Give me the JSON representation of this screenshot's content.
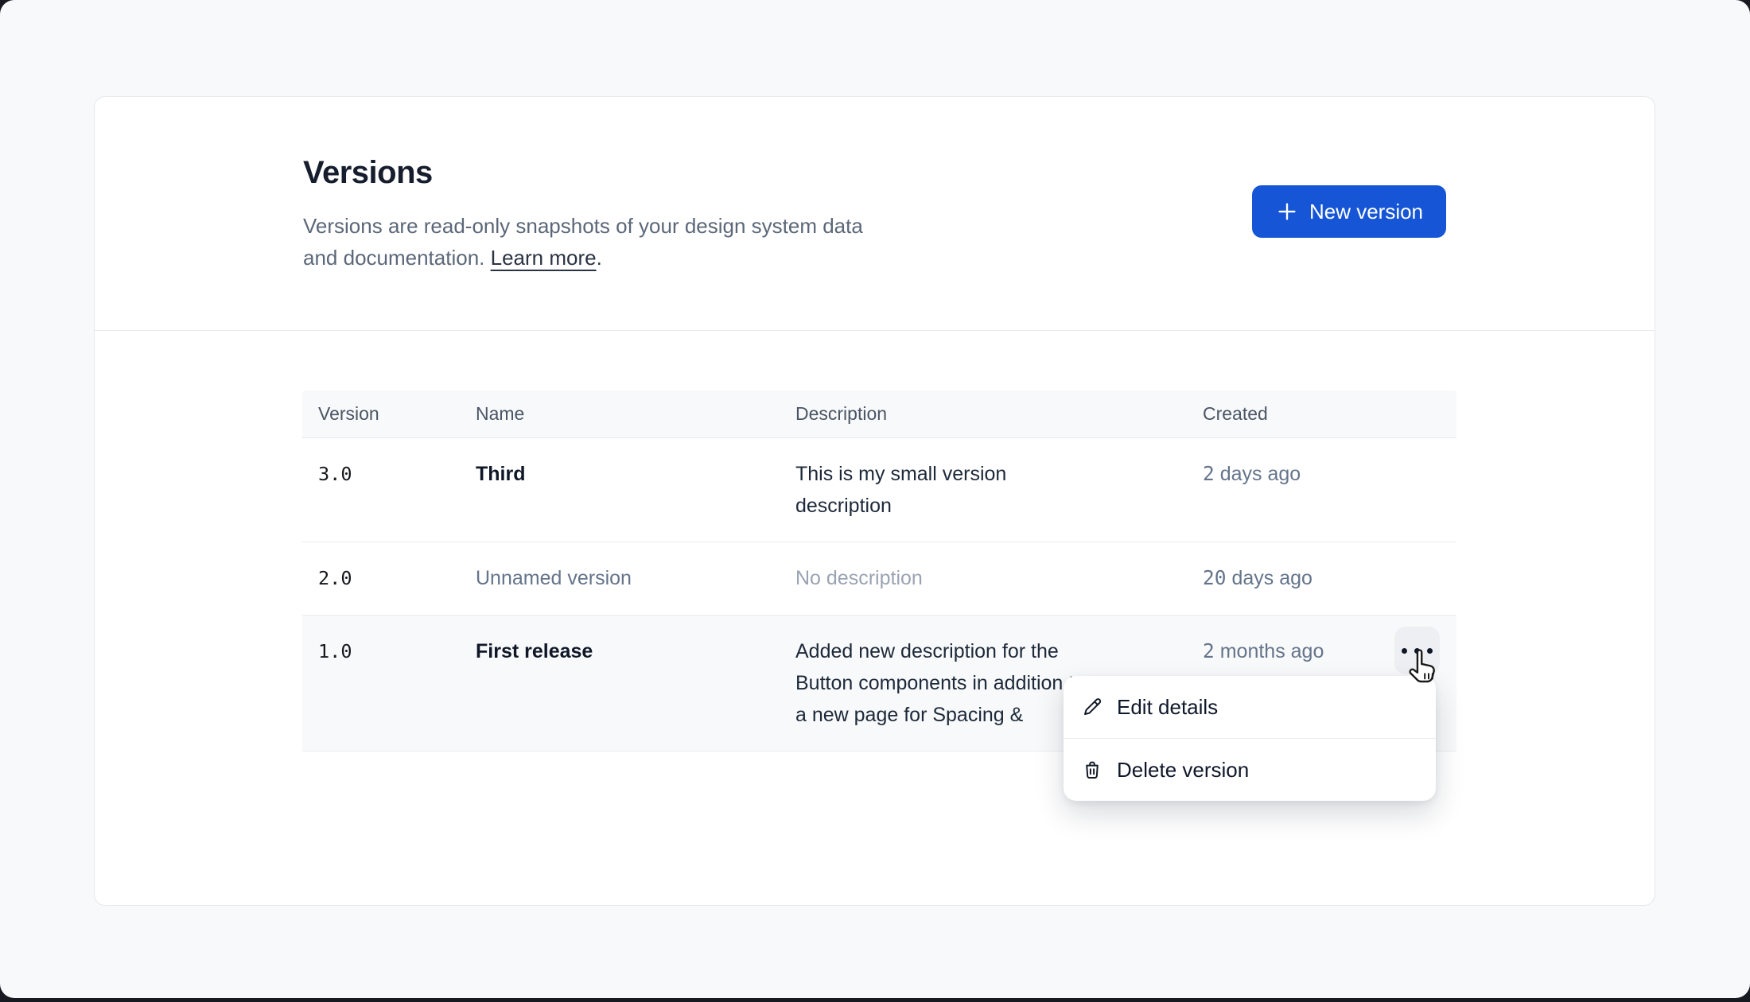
{
  "header": {
    "title": "Versions",
    "description_line1": "Versions are read-only snapshots of your design system data",
    "description_line2": "and documentation.",
    "learn_more_label": "Learn more",
    "after_link": ".",
    "new_version_label": "New version"
  },
  "table": {
    "headers": [
      "Version",
      "Name",
      "Description",
      "Created"
    ],
    "rows": [
      {
        "version": "3.0",
        "name": "Third",
        "description_lines": [
          "This is my small version",
          "description"
        ],
        "created": "2 days ago"
      },
      {
        "version": "2.0",
        "name": "Unnamed version",
        "description_lines": [
          "No description"
        ],
        "created": "20 days ago"
      },
      {
        "version": "1.0",
        "name": "First release",
        "description_lines": [
          "Added new description for the",
          "Button components in addition to",
          "a new page for Spacing &"
        ],
        "created": "2 months ago"
      }
    ]
  },
  "menu": {
    "items": [
      {
        "label": "Edit details",
        "icon": "pencil-icon"
      },
      {
        "label": "Delete version",
        "icon": "trash-icon"
      }
    ]
  },
  "colors": {
    "primary_button": "#1656d6",
    "created_text": "#64748b",
    "muted_text": "#9aa3b2",
    "title_text": "#161e2e"
  }
}
